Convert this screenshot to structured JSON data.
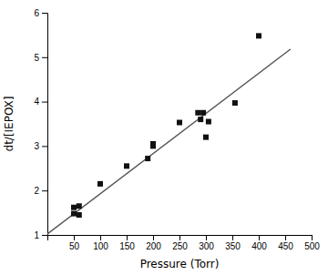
{
  "chart_data": {
    "type": "scatter",
    "xlabel": "Pressure (Torr)",
    "ylabel": "dt/[IEPOX]",
    "series": [
      {
        "type": "line",
        "color": "#555555",
        "x": [
          0,
          460
        ],
        "values": [
          1.02,
          5.18
        ]
      },
      {
        "type": "scatter",
        "color": "#111111",
        "marker": "square",
        "x": [
          50,
          50,
          60,
          60,
          100,
          150,
          190,
          200,
          200,
          250,
          285,
          290,
          295,
          300,
          305,
          355,
          400
        ],
        "values": [
          1.48,
          1.62,
          1.45,
          1.65,
          2.15,
          2.55,
          2.72,
          3.0,
          3.05,
          3.53,
          3.75,
          3.6,
          3.75,
          3.2,
          3.55,
          3.97,
          5.48
        ]
      }
    ],
    "xlim": [
      0,
      500
    ],
    "ylim": [
      1,
      6
    ],
    "xticks": [
      50,
      100,
      150,
      200,
      250,
      300,
      350,
      400,
      450,
      500
    ],
    "yticks": [
      1,
      2,
      3,
      4,
      5,
      6
    ],
    "grid": false
  }
}
